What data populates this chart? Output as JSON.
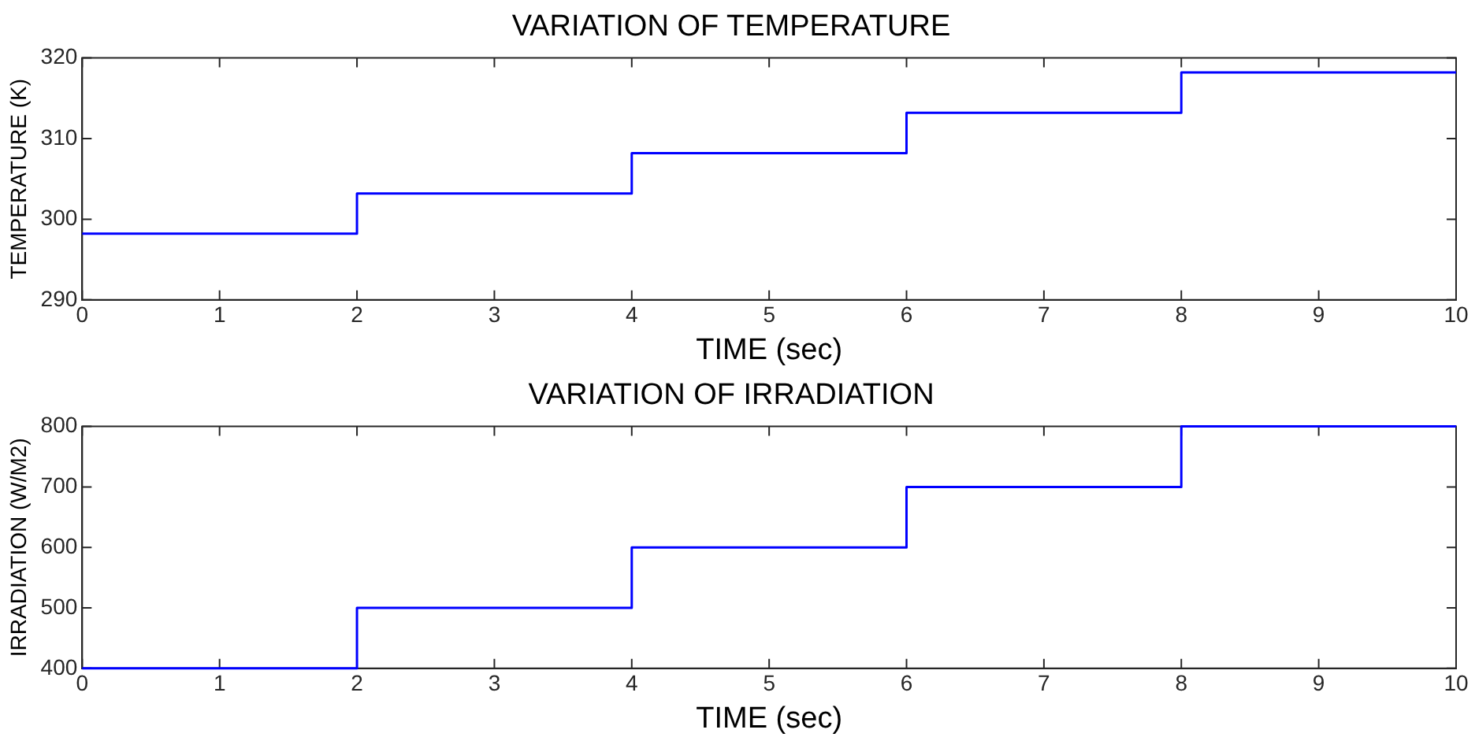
{
  "chart_data": [
    {
      "type": "step",
      "title": "VARIATION OF TEMPERATURE",
      "xlabel": "TIME (sec)",
      "ylabel": "TEMPERATURE (K)",
      "x": [
        0,
        2,
        4,
        6,
        8,
        10
      ],
      "series": [
        {
          "color": "#0000ff",
          "values": [
            298.2,
            303.2,
            308.2,
            313.2,
            318.2,
            318.2
          ]
        }
      ],
      "xlim": [
        0,
        10
      ],
      "xticks": [
        0,
        1,
        2,
        3,
        4,
        5,
        6,
        7,
        8,
        9,
        10
      ],
      "ylim": [
        290,
        320
      ],
      "yticks": [
        290,
        300,
        310,
        320
      ],
      "grid": false,
      "legend": false
    },
    {
      "type": "step",
      "title": "VARIATION OF IRRADIATION",
      "xlabel": "TIME (sec)",
      "ylabel": "IRRADIATION (W/M2)",
      "x": [
        0,
        2,
        4,
        6,
        8,
        10
      ],
      "series": [
        {
          "color": "#0000ff",
          "values": [
            400,
            500,
            600,
            700,
            800,
            800
          ]
        }
      ],
      "xlim": [
        0,
        10
      ],
      "xticks": [
        0,
        1,
        2,
        3,
        4,
        5,
        6,
        7,
        8,
        9,
        10
      ],
      "ylim": [
        400,
        800
      ],
      "yticks": [
        400,
        500,
        600,
        700,
        800
      ],
      "grid": false,
      "legend": false
    }
  ]
}
